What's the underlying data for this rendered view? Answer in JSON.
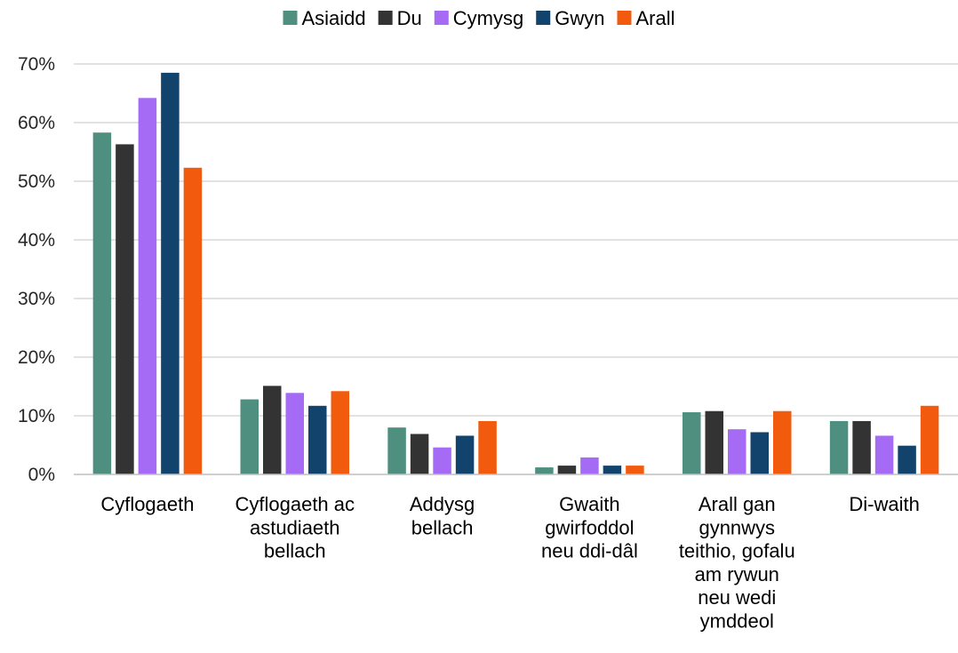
{
  "chart_data": {
    "type": "bar",
    "title": "",
    "xlabel": "",
    "ylabel": "",
    "ylim": [
      0,
      70
    ],
    "y_ticks": [
      "0%",
      "10%",
      "20%",
      "30%",
      "40%",
      "50%",
      "60%",
      "70%"
    ],
    "grid": true,
    "legend_position": "top",
    "categories": [
      [
        "Cyflogaeth"
      ],
      [
        "Cyflogaeth ac",
        "astudiaeth",
        "bellach"
      ],
      [
        "Addysg",
        "bellach"
      ],
      [
        "Gwaith",
        "gwirfoddol",
        "neu ddi-dâl"
      ],
      [
        "Arall gan",
        "gynnwys",
        "teithio, gofalu",
        "am rywun",
        "neu wedi",
        "ymddeol"
      ],
      [
        "Di-waith"
      ]
    ],
    "series": [
      {
        "name": "Asiaidd",
        "color": "#4e8f80",
        "values": [
          58.3,
          12.8,
          8.0,
          1.2,
          10.6,
          9.1
        ]
      },
      {
        "name": "Du",
        "color": "#333333",
        "values": [
          56.3,
          15.1,
          6.9,
          1.5,
          10.8,
          9.1
        ]
      },
      {
        "name": "Cymysg",
        "color": "#a56bf5",
        "values": [
          64.2,
          13.9,
          4.6,
          2.9,
          7.7,
          6.6
        ]
      },
      {
        "name": "Gwyn",
        "color": "#12436d",
        "values": [
          68.5,
          11.7,
          6.6,
          1.5,
          7.2,
          4.9
        ]
      },
      {
        "name": "Arall",
        "color": "#f25a0d",
        "values": [
          52.3,
          14.2,
          9.1,
          1.5,
          10.8,
          11.7
        ]
      }
    ]
  }
}
